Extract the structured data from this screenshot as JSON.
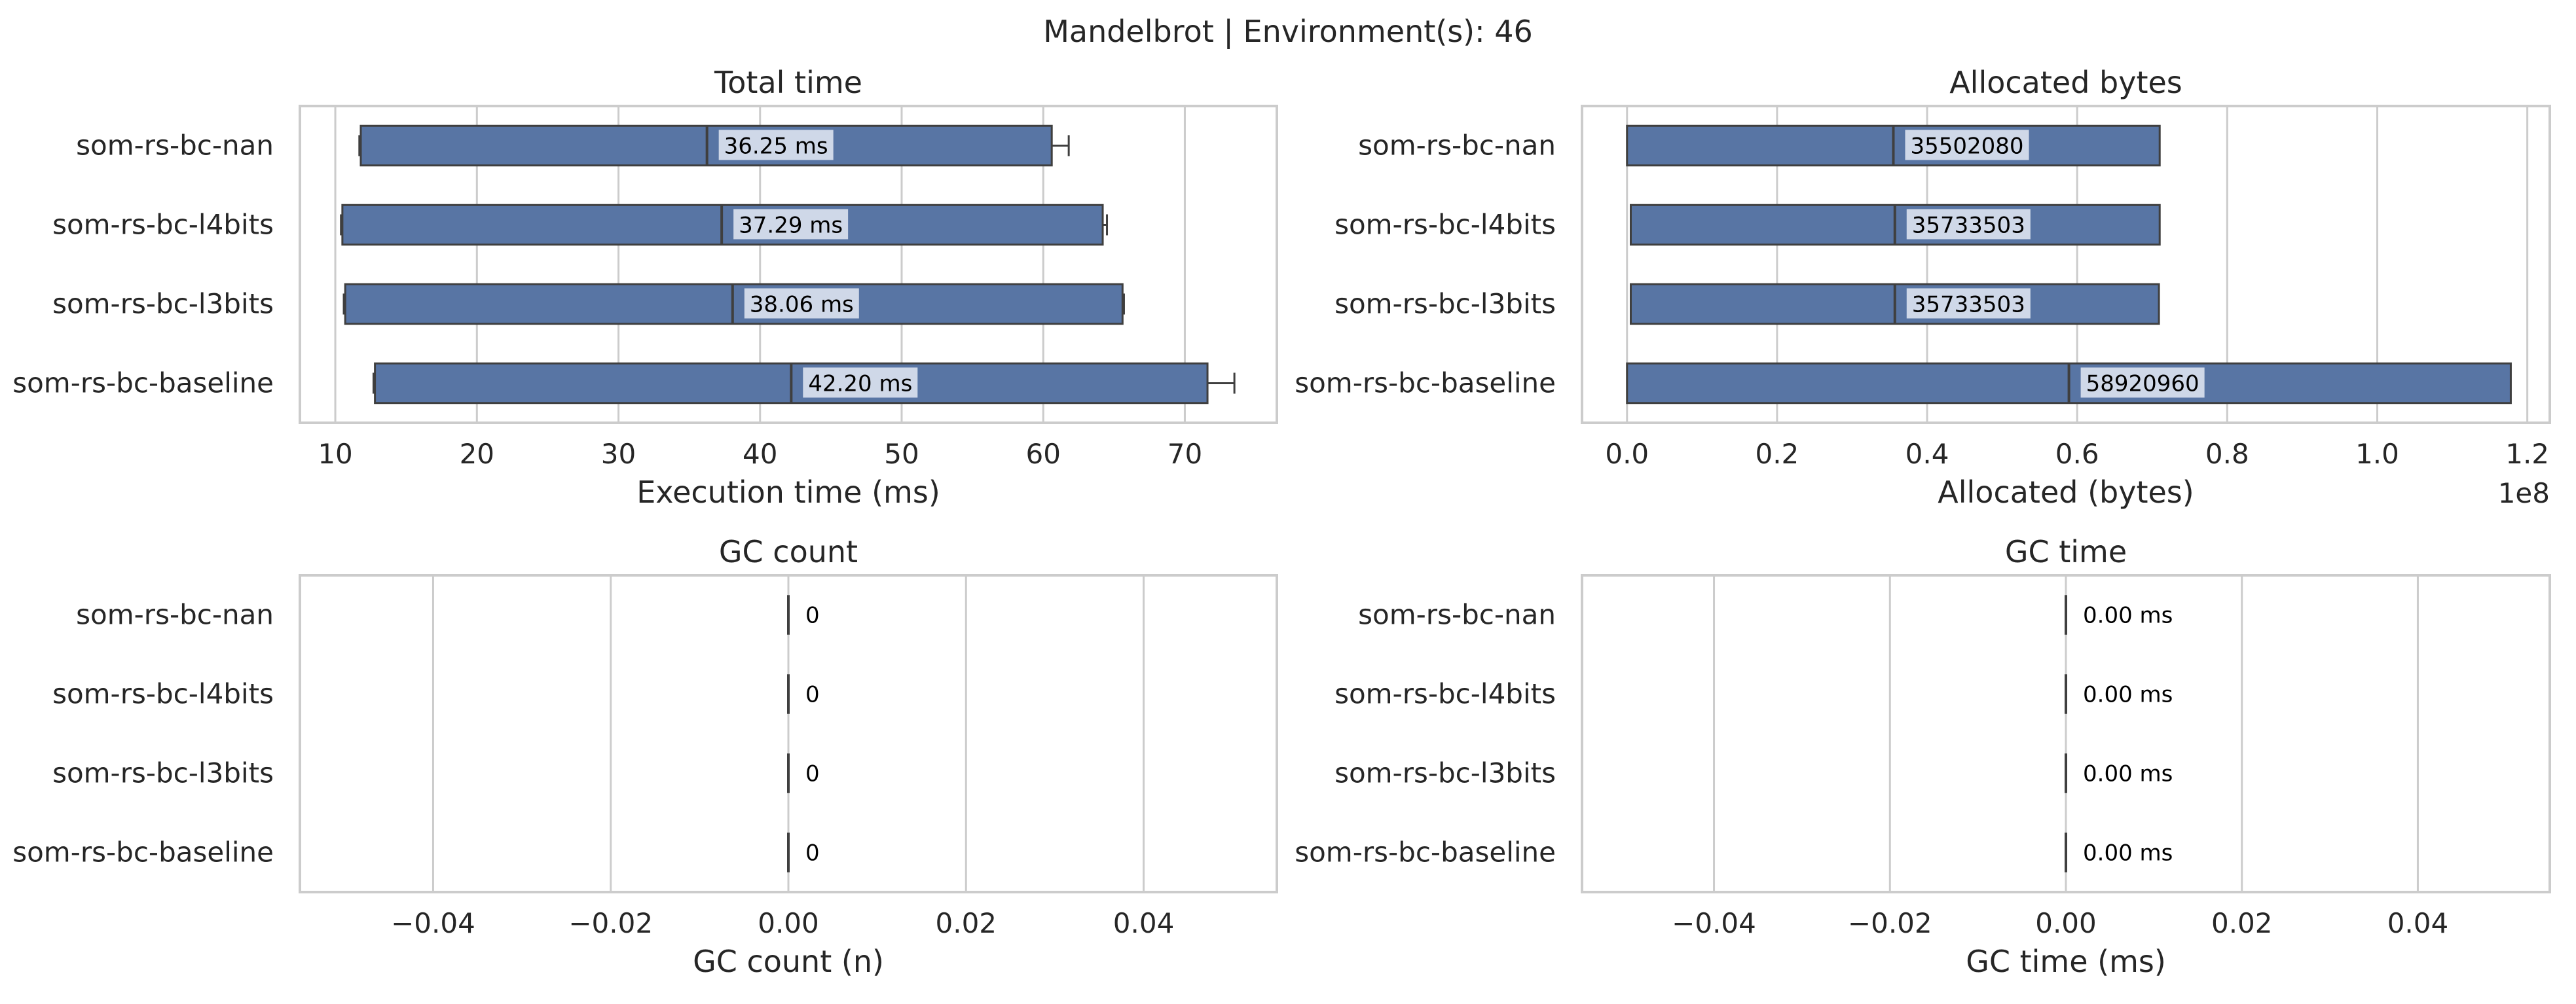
{
  "suptitle": "Mandelbrot | Environment(s): 46",
  "style": {
    "bar_color": "#5875a4",
    "edge_color": "#3f3f3f",
    "grid_color": "#cccccc",
    "label_bg": "#cfd8e8"
  },
  "chart_data": [
    {
      "type": "box",
      "title": "Total time",
      "xlabel": "Execution time (ms)",
      "categories": [
        "som-rs-bc-nan",
        "som-rs-bc-l4bits",
        "som-rs-bc-l3bits",
        "som-rs-bc-baseline"
      ],
      "xlim": [
        7.5,
        76.5
      ],
      "xticks": [
        10,
        20,
        30,
        40,
        50,
        60,
        70
      ],
      "xtick_labels": [
        "10",
        "20",
        "30",
        "40",
        "50",
        "60",
        "70"
      ],
      "offset_text": "",
      "grid": true,
      "boxes": [
        {
          "whisker_low": 11.7,
          "q1": 11.8,
          "median": 36.25,
          "q3": 60.6,
          "whisker_high": 61.8,
          "label": "36.25 ms"
        },
        {
          "whisker_low": 10.4,
          "q1": 10.5,
          "median": 37.29,
          "q3": 64.2,
          "whisker_high": 64.5,
          "label": "37.29 ms"
        },
        {
          "whisker_low": 10.6,
          "q1": 10.7,
          "median": 38.06,
          "q3": 65.6,
          "whisker_high": 65.7,
          "label": "38.06 ms"
        },
        {
          "whisker_low": 12.7,
          "q1": 12.8,
          "median": 42.2,
          "q3": 71.6,
          "whisker_high": 73.5,
          "label": "42.20 ms"
        }
      ]
    },
    {
      "type": "box",
      "title": "Allocated bytes",
      "xlabel": "Allocated (bytes)",
      "categories": [
        "som-rs-bc-nan",
        "som-rs-bc-l4bits",
        "som-rs-bc-l3bits",
        "som-rs-bc-baseline"
      ],
      "xlim": [
        -0.06,
        1.23
      ],
      "xticks": [
        0.0,
        0.2,
        0.4,
        0.6,
        0.8,
        1.0,
        1.2
      ],
      "xtick_labels": [
        "0.0",
        "0.2",
        "0.4",
        "0.6",
        "0.8",
        "1.0",
        "1.2"
      ],
      "offset_text": "1e8",
      "grid": true,
      "boxes": [
        {
          "whisker_low": 0.0,
          "q1": 0.0,
          "median": 0.355,
          "q3": 0.71,
          "whisker_high": 0.71,
          "label": "35502080"
        },
        {
          "whisker_low": 0.005,
          "q1": 0.005,
          "median": 0.357,
          "q3": 0.71,
          "whisker_high": 0.71,
          "label": "35733503"
        },
        {
          "whisker_low": 0.005,
          "q1": 0.005,
          "median": 0.357,
          "q3": 0.709,
          "whisker_high": 0.709,
          "label": "35733503"
        },
        {
          "whisker_low": 0.0,
          "q1": 0.0,
          "median": 0.589,
          "q3": 1.178,
          "whisker_high": 1.178,
          "label": "58920960"
        }
      ]
    },
    {
      "type": "box",
      "title": "GC count",
      "xlabel": "GC count (n)",
      "categories": [
        "som-rs-bc-nan",
        "som-rs-bc-l4bits",
        "som-rs-bc-l3bits",
        "som-rs-bc-baseline"
      ],
      "xlim": [
        -0.055,
        0.055
      ],
      "xticks": [
        -0.04,
        -0.02,
        0.0,
        0.02,
        0.04
      ],
      "xtick_labels": [
        "−0.04",
        "−0.02",
        "0.00",
        "0.02",
        "0.04"
      ],
      "offset_text": "",
      "grid": true,
      "boxes": [
        {
          "whisker_low": 0,
          "q1": 0,
          "median": 0,
          "q3": 0,
          "whisker_high": 0,
          "label": "0"
        },
        {
          "whisker_low": 0,
          "q1": 0,
          "median": 0,
          "q3": 0,
          "whisker_high": 0,
          "label": "0"
        },
        {
          "whisker_low": 0,
          "q1": 0,
          "median": 0,
          "q3": 0,
          "whisker_high": 0,
          "label": "0"
        },
        {
          "whisker_low": 0,
          "q1": 0,
          "median": 0,
          "q3": 0,
          "whisker_high": 0,
          "label": "0"
        }
      ]
    },
    {
      "type": "box",
      "title": "GC time",
      "xlabel": "GC time (ms)",
      "categories": [
        "som-rs-bc-nan",
        "som-rs-bc-l4bits",
        "som-rs-bc-l3bits",
        "som-rs-bc-baseline"
      ],
      "xlim": [
        -0.055,
        0.055
      ],
      "xticks": [
        -0.04,
        -0.02,
        0.0,
        0.02,
        0.04
      ],
      "xtick_labels": [
        "−0.04",
        "−0.02",
        "0.00",
        "0.02",
        "0.04"
      ],
      "offset_text": "",
      "grid": true,
      "boxes": [
        {
          "whisker_low": 0,
          "q1": 0,
          "median": 0,
          "q3": 0,
          "whisker_high": 0,
          "label": "0.00 ms"
        },
        {
          "whisker_low": 0,
          "q1": 0,
          "median": 0,
          "q3": 0,
          "whisker_high": 0,
          "label": "0.00 ms"
        },
        {
          "whisker_low": 0,
          "q1": 0,
          "median": 0,
          "q3": 0,
          "whisker_high": 0,
          "label": "0.00 ms"
        },
        {
          "whisker_low": 0,
          "q1": 0,
          "median": 0,
          "q3": 0,
          "whisker_high": 0,
          "label": "0.00 ms"
        }
      ]
    }
  ]
}
